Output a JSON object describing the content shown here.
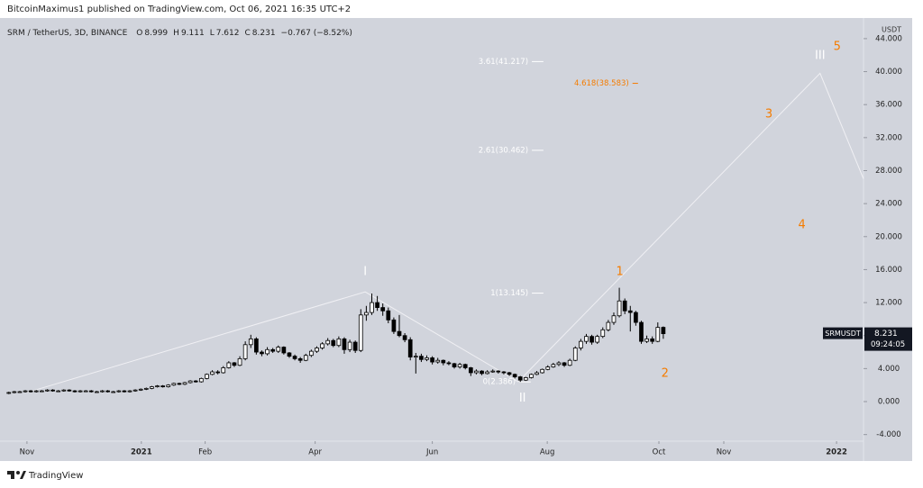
{
  "header": "BitcoinMaximus1 published on TradingView.com, Oct 06, 2021 16:35 UTC+2",
  "footer": "TradingView",
  "chart_data": {
    "type": "candlestick",
    "title": "SRM / TetherUS, 3D, BINANCE",
    "ohlc_labels": [
      "O",
      "H",
      "L",
      "C"
    ],
    "change": "−0.767 (−8.52%)",
    "symbol": "SRMUSDT",
    "countdown": "09:24:05",
    "currency": "USDT",
    "up_color": "#ffffff",
    "down_color": "#000000",
    "line_color": "#f0f0f4",
    "xlim": [
      -1.6,
      155.4
    ],
    "xticks": [
      {
        "value": 3.3,
        "label": "Nov"
      },
      {
        "value": 24.1,
        "label": "2021"
      },
      {
        "value": 35.7,
        "label": "Feb"
      },
      {
        "value": 55.7,
        "label": "Apr"
      },
      {
        "value": 77,
        "label": "Jun"
      },
      {
        "value": 97.9,
        "label": "Aug"
      },
      {
        "value": 118.2,
        "label": "Oct"
      },
      {
        "value": 130,
        "label": "Nov"
      },
      {
        "value": 150.5,
        "label": "2022"
      }
    ],
    "ylim": [
      -4.8,
      46.5
    ],
    "yticks": [
      {
        "value": -4,
        "label": "-4.000"
      },
      {
        "value": 0,
        "label": "0.000"
      },
      {
        "value": 4,
        "label": "4.000"
      },
      {
        "value": 8,
        "label": "8.000"
      },
      {
        "value": 12,
        "label": "12.000"
      },
      {
        "value": 16,
        "label": "16.000"
      },
      {
        "value": 20,
        "label": "20.000"
      },
      {
        "value": 24,
        "label": "24.000"
      },
      {
        "value": 28,
        "label": "28.000"
      },
      {
        "value": 32,
        "label": "32.000"
      },
      {
        "value": 36,
        "label": "36.000"
      },
      {
        "value": 40,
        "label": "40.000"
      },
      {
        "value": 44,
        "label": "44.000"
      }
    ],
    "grid": false,
    "candles": [
      [
        1.0,
        1.2,
        0.9,
        1.1
      ],
      [
        1.1,
        1.3,
        1.0,
        1.2
      ],
      [
        1.2,
        1.3,
        1.1,
        1.2
      ],
      [
        1.2,
        1.4,
        1.1,
        1.3
      ],
      [
        1.3,
        1.4,
        1.1,
        1.2
      ],
      [
        1.2,
        1.4,
        1.1,
        1.3
      ],
      [
        1.3,
        1.4,
        1.2,
        1.3
      ],
      [
        1.3,
        1.5,
        1.2,
        1.4
      ],
      [
        1.4,
        1.5,
        1.2,
        1.3
      ],
      [
        1.3,
        1.4,
        1.2,
        1.3
      ],
      [
        1.3,
        1.5,
        1.2,
        1.4
      ],
      [
        1.4,
        1.5,
        1.2,
        1.3
      ],
      [
        1.3,
        1.4,
        1.1,
        1.2
      ],
      [
        1.2,
        1.4,
        1.1,
        1.3
      ],
      [
        1.3,
        1.4,
        1.2,
        1.3
      ],
      [
        1.3,
        1.4,
        1.1,
        1.2
      ],
      [
        1.2,
        1.3,
        1.1,
        1.2
      ],
      [
        1.2,
        1.4,
        1.1,
        1.3
      ],
      [
        1.3,
        1.4,
        1.1,
        1.2
      ],
      [
        1.2,
        1.3,
        1.1,
        1.2
      ],
      [
        1.2,
        1.4,
        1.1,
        1.3
      ],
      [
        1.3,
        1.4,
        1.1,
        1.2
      ],
      [
        1.2,
        1.4,
        1.1,
        1.3
      ],
      [
        1.3,
        1.5,
        1.2,
        1.4
      ],
      [
        1.4,
        1.6,
        1.3,
        1.5
      ],
      [
        1.5,
        1.7,
        1.4,
        1.6
      ],
      [
        1.6,
        1.9,
        1.5,
        1.8
      ],
      [
        1.8,
        2.0,
        1.7,
        1.9
      ],
      [
        1.9,
        2.0,
        1.7,
        1.8
      ],
      [
        1.8,
        2.1,
        1.7,
        2.0
      ],
      [
        2.0,
        2.3,
        1.9,
        2.2
      ],
      [
        2.2,
        2.3,
        2.0,
        2.1
      ],
      [
        2.1,
        2.4,
        2.0,
        2.3
      ],
      [
        2.3,
        2.6,
        2.2,
        2.5
      ],
      [
        2.5,
        2.6,
        2.3,
        2.4
      ],
      [
        2.4,
        2.9,
        2.3,
        2.8
      ],
      [
        2.8,
        3.4,
        2.7,
        3.3
      ],
      [
        3.3,
        3.8,
        3.2,
        3.6
      ],
      [
        3.6,
        3.8,
        3.3,
        3.5
      ],
      [
        3.5,
        4.3,
        3.4,
        4.1
      ],
      [
        4.1,
        4.9,
        4.0,
        4.7
      ],
      [
        4.7,
        4.8,
        4.2,
        4.4
      ],
      [
        4.4,
        5.5,
        4.3,
        5.2
      ],
      [
        5.2,
        7.3,
        5.0,
        6.9
      ],
      [
        6.9,
        8.1,
        6.5,
        7.6
      ],
      [
        7.6,
        7.8,
        5.7,
        6.0
      ],
      [
        6.0,
        6.2,
        5.5,
        5.8
      ],
      [
        5.8,
        6.6,
        5.6,
        6.3
      ],
      [
        6.3,
        6.5,
        5.9,
        6.1
      ],
      [
        6.1,
        6.8,
        5.9,
        6.6
      ],
      [
        6.6,
        6.7,
        5.7,
        5.9
      ],
      [
        5.9,
        6.0,
        5.3,
        5.5
      ],
      [
        5.5,
        5.7,
        5.0,
        5.2
      ],
      [
        5.2,
        5.4,
        4.7,
        5.0
      ],
      [
        5.0,
        5.8,
        4.9,
        5.6
      ],
      [
        5.6,
        6.3,
        5.4,
        6.1
      ],
      [
        6.1,
        6.7,
        5.9,
        6.5
      ],
      [
        6.5,
        7.2,
        6.3,
        7.0
      ],
      [
        7.0,
        7.7,
        6.8,
        7.4
      ],
      [
        7.4,
        7.6,
        6.6,
        6.8
      ],
      [
        6.8,
        7.9,
        6.6,
        7.6
      ],
      [
        7.6,
        7.8,
        5.8,
        6.3
      ],
      [
        6.3,
        7.5,
        6.0,
        7.2
      ],
      [
        7.2,
        7.4,
        5.9,
        6.2
      ],
      [
        6.2,
        11.2,
        6.0,
        10.5
      ],
      [
        10.5,
        11.6,
        9.8,
        10.8
      ],
      [
        10.8,
        13.1,
        10.5,
        12.0
      ],
      [
        12.0,
        12.8,
        11.0,
        11.4
      ],
      [
        11.4,
        11.9,
        10.4,
        11.0
      ],
      [
        11.0,
        11.4,
        9.5,
        9.9
      ],
      [
        9.9,
        10.2,
        8.2,
        8.5
      ],
      [
        8.5,
        10.5,
        7.8,
        8.0
      ],
      [
        8.0,
        8.3,
        7.2,
        7.5
      ],
      [
        7.5,
        7.8,
        5.0,
        5.4
      ],
      [
        5.4,
        5.9,
        3.4,
        5.5
      ],
      [
        5.5,
        5.8,
        4.8,
        5.1
      ],
      [
        5.1,
        5.6,
        4.9,
        5.3
      ],
      [
        5.3,
        5.5,
        4.5,
        4.8
      ],
      [
        4.8,
        5.3,
        4.6,
        5.0
      ],
      [
        5.0,
        5.1,
        4.4,
        4.7
      ],
      [
        4.7,
        4.9,
        4.4,
        4.6
      ],
      [
        4.6,
        4.7,
        4.0,
        4.2
      ],
      [
        4.2,
        4.7,
        4.0,
        4.5
      ],
      [
        4.5,
        4.6,
        3.9,
        4.1
      ],
      [
        4.1,
        4.2,
        3.1,
        3.5
      ],
      [
        3.5,
        3.9,
        3.3,
        3.7
      ],
      [
        3.7,
        3.8,
        3.2,
        3.4
      ],
      [
        3.4,
        3.8,
        3.3,
        3.6
      ],
      [
        3.6,
        3.9,
        3.5,
        3.7
      ],
      [
        3.7,
        3.8,
        3.4,
        3.6
      ],
      [
        3.6,
        3.7,
        3.3,
        3.5
      ],
      [
        3.5,
        3.6,
        3.1,
        3.3
      ],
      [
        3.3,
        3.4,
        2.8,
        3.0
      ],
      [
        3.0,
        3.1,
        2.386,
        2.6
      ],
      [
        2.6,
        3.0,
        2.5,
        2.9
      ],
      [
        2.9,
        3.4,
        2.8,
        3.3
      ],
      [
        3.3,
        3.7,
        3.2,
        3.5
      ],
      [
        3.5,
        4.0,
        3.4,
        3.9
      ],
      [
        3.9,
        4.4,
        3.8,
        4.2
      ],
      [
        4.2,
        4.7,
        4.1,
        4.5
      ],
      [
        4.5,
        4.9,
        4.3,
        4.7
      ],
      [
        4.7,
        4.8,
        4.2,
        4.4
      ],
      [
        4.4,
        5.2,
        4.3,
        5.0
      ],
      [
        5.0,
        6.7,
        4.9,
        6.5
      ],
      [
        6.5,
        7.6,
        6.2,
        7.3
      ],
      [
        7.3,
        8.2,
        7.0,
        7.9
      ],
      [
        7.9,
        8.1,
        6.9,
        7.2
      ],
      [
        7.2,
        8.1,
        7.0,
        7.9
      ],
      [
        7.9,
        9.0,
        7.7,
        8.7
      ],
      [
        8.7,
        9.9,
        8.5,
        9.6
      ],
      [
        9.6,
        10.8,
        9.3,
        10.4
      ],
      [
        10.4,
        13.8,
        10.2,
        12.2
      ],
      [
        12.2,
        12.5,
        10.6,
        11.0
      ],
      [
        11.0,
        11.6,
        8.5,
        10.8
      ],
      [
        10.8,
        11.0,
        9.2,
        9.6
      ],
      [
        9.6,
        9.8,
        7.0,
        7.3
      ],
      [
        7.3,
        8.0,
        7.1,
        7.6
      ],
      [
        7.6,
        7.9,
        7.0,
        7.3
      ],
      [
        7.3,
        9.6,
        7.2,
        8.998
      ],
      [
        8.999,
        9.111,
        7.612,
        8.231
      ]
    ],
    "wave_line": {
      "x": [
        3.3,
        64.8,
        92.6,
        147.5,
        155.4
      ],
      "y": [
        1.1,
        13.3,
        2.4,
        39.8,
        27
      ]
    },
    "fib_levels": [
      {
        "label": "3.61(41.217)",
        "value": 41.217,
        "x": [
          95.1,
          97.2
        ],
        "color": "#ffffff"
      },
      {
        "label": "4.618(38.583)",
        "value": 38.583,
        "x": [
          113.4,
          114.4
        ],
        "color": "#f57c00"
      },
      {
        "label": "2.61(30.462)",
        "value": 30.462,
        "x": [
          95.1,
          97.2
        ],
        "color": "#ffffff"
      },
      {
        "label": "1(13.145)",
        "value": 13.145,
        "x": [
          95.1,
          97.2
        ],
        "color": "#ffffff"
      },
      {
        "label": "0(2.386)",
        "value": 2.386,
        "x": [
          92.8,
          94.9
        ],
        "color": "#ffffff"
      }
    ],
    "waves": [
      {
        "label": "I",
        "x": 64.8,
        "y": 15.7,
        "color": "#ffffff"
      },
      {
        "label": "II",
        "x": 93.4,
        "y": 0.4,
        "color": "#ffffff"
      },
      {
        "label": "III",
        "x": 147.5,
        "y": 41.9,
        "color": "#ffffff"
      },
      {
        "label": "1",
        "x": 111.1,
        "y": 15.7,
        "color": "#f57c00"
      },
      {
        "label": "2",
        "x": 119.3,
        "y": 3.4,
        "color": "#f57c00"
      },
      {
        "label": "3",
        "x": 138.2,
        "y": 34.8,
        "color": "#f57c00"
      },
      {
        "label": "4",
        "x": 144.2,
        "y": 21.4,
        "color": "#f57c00"
      },
      {
        "label": "5",
        "x": 150.6,
        "y": 43.0,
        "color": "#f57c00"
      }
    ]
  }
}
